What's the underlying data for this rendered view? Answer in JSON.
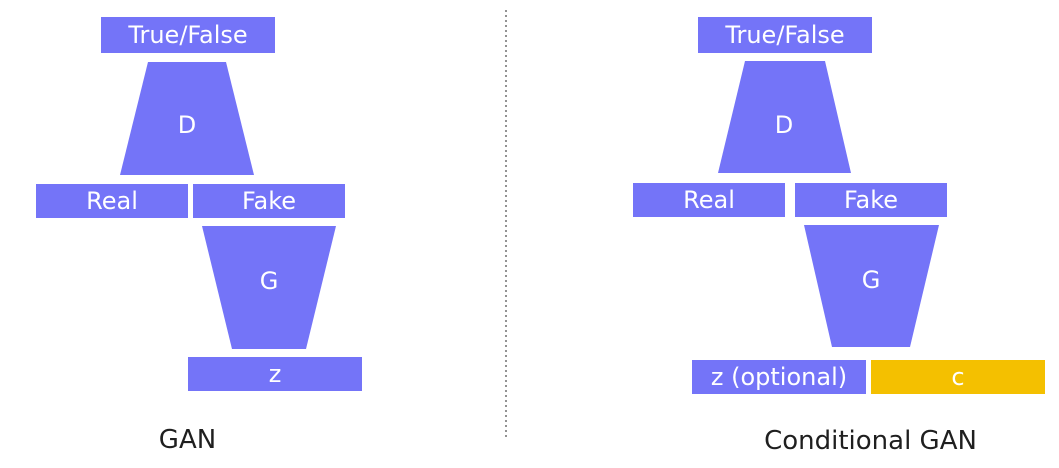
{
  "colors": {
    "primary": "#7474f8",
    "accent": "#f4c000",
    "divider": "#777777",
    "caption": "#1f1f1f",
    "label": "#ffffff"
  },
  "gan": {
    "output_label": "True/False",
    "discriminator_label": "D",
    "real_label": "Real",
    "fake_label": "Fake",
    "generator_label": "G",
    "noise_label": "z",
    "caption": "GAN"
  },
  "conditional_gan": {
    "output_label": "True/False",
    "discriminator_label": "D",
    "real_label": "Real",
    "fake_label": "Fake",
    "generator_label": "G",
    "noise_label": "z (optional)",
    "condition_label": "c",
    "caption": "Conditional GAN"
  }
}
